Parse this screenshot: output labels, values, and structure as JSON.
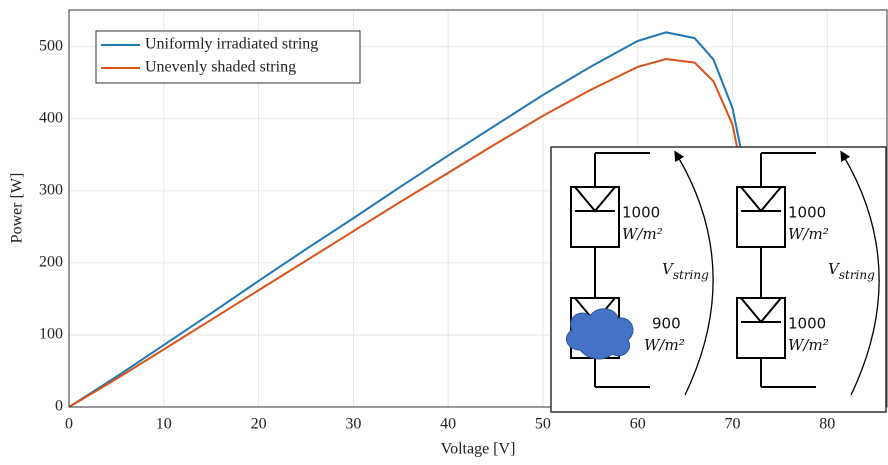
{
  "chart_data": {
    "type": "line",
    "x_label": "Voltage [V]",
    "y_label": "Power [W]",
    "x": [
      0,
      5,
      10,
      15,
      20,
      25,
      30,
      35,
      40,
      45,
      50,
      55,
      60,
      63,
      66,
      68,
      70,
      72,
      73,
      74
    ],
    "series": [
      {
        "name": "Uniformly irradiated string",
        "color": "#1f77b4",
        "values": [
          0,
          42,
          86,
          130,
          175,
          219,
          262,
          306,
          349,
          391,
          433,
          472,
          508,
          520,
          512,
          482,
          415,
          285,
          170,
          40
        ]
      },
      {
        "name": "Unevenly shaded string",
        "color": "#d95319",
        "values": [
          0,
          39,
          80,
          121,
          162,
          203,
          244,
          285,
          325,
          365,
          404,
          440,
          472,
          483,
          478,
          452,
          392,
          262,
          150,
          30
        ]
      }
    ],
    "xlim": [
      0,
      86.3
    ],
    "ylim": [
      0,
      551
    ],
    "xticks": [
      0,
      10,
      20,
      30,
      40,
      50,
      60,
      70,
      80
    ],
    "yticks": [
      0,
      100,
      200,
      300,
      400,
      500
    ],
    "grid": true,
    "legend": "upper left",
    "inset": {
      "strings": [
        {
          "modules": [
            {
              "irradiance": "1000",
              "unit": "W/m²"
            },
            {
              "irradiance": "900",
              "unit": "W/m²"
            }
          ],
          "voltage_symbol": "V",
          "voltage_subscript": "string"
        },
        {
          "modules": [
            {
              "irradiance": "1000",
              "unit": "W/m²"
            },
            {
              "irradiance": "1000",
              "unit": "W/m²"
            }
          ],
          "voltage_symbol": "V",
          "voltage_subscript": "string"
        }
      ]
    }
  }
}
